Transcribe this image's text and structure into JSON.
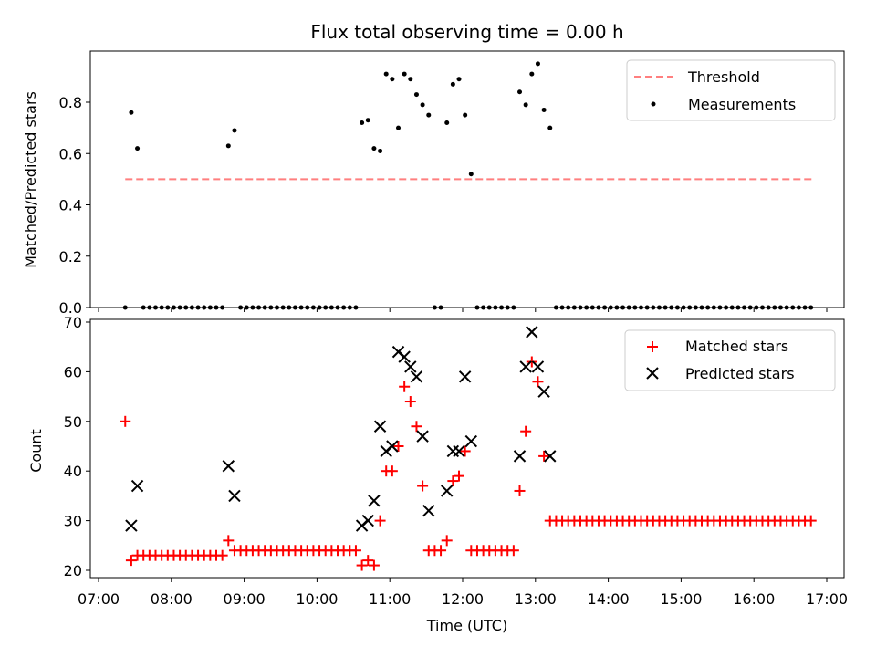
{
  "chart_data": [
    {
      "type": "scatter",
      "title": "Flux total observing time = 0.00 h",
      "xlabel": "",
      "ylabel": "Matched/Predicted stars",
      "ylim": [
        0,
        1.0
      ],
      "yticks": [
        "0.0",
        "0.2",
        "0.4",
        "0.6",
        "0.8"
      ],
      "grid": false,
      "legend": "top-right",
      "threshold": {
        "name": "Threshold",
        "value": 0.5,
        "x_start": "07:22",
        "x_end": "16:48",
        "color": "#ff7f7f"
      },
      "series": [
        {
          "name": "Measurements",
          "color": "#000000",
          "points": [
            [
              "07:22",
              0
            ],
            [
              "07:27",
              0.76
            ],
            [
              "07:32",
              0.62
            ],
            [
              "07:37",
              0
            ],
            [
              "07:42",
              0
            ],
            [
              "07:47",
              0
            ],
            [
              "07:52",
              0
            ],
            [
              "07:57",
              0
            ],
            [
              "08:02",
              0
            ],
            [
              "08:07",
              0
            ],
            [
              "08:12",
              0
            ],
            [
              "08:17",
              0
            ],
            [
              "08:22",
              0
            ],
            [
              "08:27",
              0
            ],
            [
              "08:32",
              0
            ],
            [
              "08:37",
              0
            ],
            [
              "08:42",
              0
            ],
            [
              "08:47",
              0.63
            ],
            [
              "08:52",
              0.69
            ],
            [
              "08:57",
              0
            ],
            [
              "09:02",
              0
            ],
            [
              "09:07",
              0
            ],
            [
              "09:12",
              0
            ],
            [
              "09:17",
              0
            ],
            [
              "09:22",
              0
            ],
            [
              "09:27",
              0
            ],
            [
              "09:32",
              0
            ],
            [
              "09:37",
              0
            ],
            [
              "09:42",
              0
            ],
            [
              "09:47",
              0
            ],
            [
              "09:52",
              0
            ],
            [
              "09:57",
              0
            ],
            [
              "10:02",
              0
            ],
            [
              "10:07",
              0
            ],
            [
              "10:12",
              0
            ],
            [
              "10:17",
              0
            ],
            [
              "10:22",
              0
            ],
            [
              "10:27",
              0
            ],
            [
              "10:32",
              0
            ],
            [
              "10:37",
              0.72
            ],
            [
              "10:42",
              0.73
            ],
            [
              "10:47",
              0.62
            ],
            [
              "10:52",
              0.61
            ],
            [
              "10:57",
              0.91
            ],
            [
              "11:02",
              0.89
            ],
            [
              "11:07",
              0.7
            ],
            [
              "11:12",
              0.91
            ],
            [
              "11:17",
              0.89
            ],
            [
              "11:22",
              0.83
            ],
            [
              "11:27",
              0.79
            ],
            [
              "11:32",
              0.75
            ],
            [
              "11:37",
              0
            ],
            [
              "11:42",
              0
            ],
            [
              "11:47",
              0.72
            ],
            [
              "11:52",
              0.87
            ],
            [
              "11:57",
              0.89
            ],
            [
              "12:02",
              0.75
            ],
            [
              "12:07",
              0.52
            ],
            [
              "12:12",
              0
            ],
            [
              "12:17",
              0
            ],
            [
              "12:22",
              0
            ],
            [
              "12:27",
              0
            ],
            [
              "12:32",
              0
            ],
            [
              "12:37",
              0
            ],
            [
              "12:42",
              0
            ],
            [
              "12:47",
              0.84
            ],
            [
              "12:52",
              0.79
            ],
            [
              "12:57",
              0.91
            ],
            [
              "13:02",
              0.95
            ],
            [
              "13:07",
              0.77
            ],
            [
              "13:12",
              0.7
            ],
            [
              "13:17",
              0
            ],
            [
              "13:22",
              0
            ],
            [
              "13:27",
              0
            ],
            [
              "13:32",
              0
            ],
            [
              "13:37",
              0
            ],
            [
              "13:42",
              0
            ],
            [
              "13:47",
              0
            ],
            [
              "13:52",
              0
            ],
            [
              "13:57",
              0
            ],
            [
              "14:02",
              0
            ],
            [
              "14:07",
              0
            ],
            [
              "14:12",
              0
            ],
            [
              "14:17",
              0
            ],
            [
              "14:22",
              0
            ],
            [
              "14:27",
              0
            ],
            [
              "14:32",
              0
            ],
            [
              "14:37",
              0
            ],
            [
              "14:42",
              0
            ],
            [
              "14:47",
              0
            ],
            [
              "14:52",
              0
            ],
            [
              "14:57",
              0
            ],
            [
              "15:02",
              0
            ],
            [
              "15:07",
              0
            ],
            [
              "15:12",
              0
            ],
            [
              "15:17",
              0
            ],
            [
              "15:22",
              0
            ],
            [
              "15:27",
              0
            ],
            [
              "15:32",
              0
            ],
            [
              "15:37",
              0
            ],
            [
              "15:42",
              0
            ],
            [
              "15:47",
              0
            ],
            [
              "15:52",
              0
            ],
            [
              "15:57",
              0
            ],
            [
              "16:02",
              0
            ],
            [
              "16:07",
              0
            ],
            [
              "16:12",
              0
            ],
            [
              "16:17",
              0
            ],
            [
              "16:22",
              0
            ],
            [
              "16:27",
              0
            ],
            [
              "16:32",
              0
            ],
            [
              "16:37",
              0
            ],
            [
              "16:42",
              0
            ],
            [
              "16:47",
              0
            ]
          ]
        }
      ]
    },
    {
      "type": "scatter",
      "title": "",
      "xlabel": "Time (UTC)",
      "ylabel": "Count",
      "ylim": [
        19,
        70
      ],
      "xlim": [
        "07:00",
        "17:15"
      ],
      "xticks": [
        "07:00",
        "08:00",
        "09:00",
        "10:00",
        "11:00",
        "12:00",
        "13:00",
        "14:00",
        "15:00",
        "16:00",
        "17:00"
      ],
      "yticks": [
        "20",
        "30",
        "40",
        "50",
        "60",
        "70"
      ],
      "grid": false,
      "legend": "top-right",
      "series": [
        {
          "name": "Matched stars",
          "marker": "plus",
          "color": "#ff0000",
          "points": [
            [
              "07:22",
              50
            ],
            [
              "07:27",
              22
            ],
            [
              "07:32",
              23
            ],
            [
              "07:37",
              23
            ],
            [
              "07:42",
              23
            ],
            [
              "07:47",
              23
            ],
            [
              "07:52",
              23
            ],
            [
              "07:57",
              23
            ],
            [
              "08:02",
              23
            ],
            [
              "08:07",
              23
            ],
            [
              "08:12",
              23
            ],
            [
              "08:17",
              23
            ],
            [
              "08:22",
              23
            ],
            [
              "08:27",
              23
            ],
            [
              "08:32",
              23
            ],
            [
              "08:37",
              23
            ],
            [
              "08:42",
              23
            ],
            [
              "08:47",
              26
            ],
            [
              "08:52",
              24
            ],
            [
              "08:57",
              24
            ],
            [
              "09:02",
              24
            ],
            [
              "09:07",
              24
            ],
            [
              "09:12",
              24
            ],
            [
              "09:17",
              24
            ],
            [
              "09:22",
              24
            ],
            [
              "09:27",
              24
            ],
            [
              "09:32",
              24
            ],
            [
              "09:37",
              24
            ],
            [
              "09:42",
              24
            ],
            [
              "09:47",
              24
            ],
            [
              "09:52",
              24
            ],
            [
              "09:57",
              24
            ],
            [
              "10:02",
              24
            ],
            [
              "10:07",
              24
            ],
            [
              "10:12",
              24
            ],
            [
              "10:17",
              24
            ],
            [
              "10:22",
              24
            ],
            [
              "10:27",
              24
            ],
            [
              "10:32",
              24
            ],
            [
              "10:37",
              21
            ],
            [
              "10:42",
              22
            ],
            [
              "10:47",
              21
            ],
            [
              "10:52",
              30
            ],
            [
              "10:57",
              40
            ],
            [
              "11:02",
              40
            ],
            [
              "11:07",
              45
            ],
            [
              "11:12",
              57
            ],
            [
              "11:17",
              54
            ],
            [
              "11:22",
              49
            ],
            [
              "11:27",
              37
            ],
            [
              "11:32",
              24
            ],
            [
              "11:37",
              24
            ],
            [
              "11:42",
              24
            ],
            [
              "11:47",
              26
            ],
            [
              "11:52",
              38
            ],
            [
              "11:57",
              39
            ],
            [
              "12:02",
              44
            ],
            [
              "12:07",
              24
            ],
            [
              "12:12",
              24
            ],
            [
              "12:17",
              24
            ],
            [
              "12:22",
              24
            ],
            [
              "12:27",
              24
            ],
            [
              "12:32",
              24
            ],
            [
              "12:37",
              24
            ],
            [
              "12:42",
              24
            ],
            [
              "12:47",
              36
            ],
            [
              "12:52",
              48
            ],
            [
              "12:57",
              62
            ],
            [
              "13:02",
              58
            ],
            [
              "13:07",
              43
            ],
            [
              "13:12",
              30
            ],
            [
              "13:17",
              30
            ],
            [
              "13:22",
              30
            ],
            [
              "13:27",
              30
            ],
            [
              "13:32",
              30
            ],
            [
              "13:37",
              30
            ],
            [
              "13:42",
              30
            ],
            [
              "13:47",
              30
            ],
            [
              "13:52",
              30
            ],
            [
              "13:57",
              30
            ],
            [
              "14:02",
              30
            ],
            [
              "14:07",
              30
            ],
            [
              "14:12",
              30
            ],
            [
              "14:17",
              30
            ],
            [
              "14:22",
              30
            ],
            [
              "14:27",
              30
            ],
            [
              "14:32",
              30
            ],
            [
              "14:37",
              30
            ],
            [
              "14:42",
              30
            ],
            [
              "14:47",
              30
            ],
            [
              "14:52",
              30
            ],
            [
              "14:57",
              30
            ],
            [
              "15:02",
              30
            ],
            [
              "15:07",
              30
            ],
            [
              "15:12",
              30
            ],
            [
              "15:17",
              30
            ],
            [
              "15:22",
              30
            ],
            [
              "15:27",
              30
            ],
            [
              "15:32",
              30
            ],
            [
              "15:37",
              30
            ],
            [
              "15:42",
              30
            ],
            [
              "15:47",
              30
            ],
            [
              "15:52",
              30
            ],
            [
              "15:57",
              30
            ],
            [
              "16:02",
              30
            ],
            [
              "16:07",
              30
            ],
            [
              "16:12",
              30
            ],
            [
              "16:17",
              30
            ],
            [
              "16:22",
              30
            ],
            [
              "16:27",
              30
            ],
            [
              "16:32",
              30
            ],
            [
              "16:37",
              30
            ],
            [
              "16:42",
              30
            ],
            [
              "16:47",
              30
            ]
          ]
        },
        {
          "name": "Predicted stars",
          "marker": "x",
          "color": "#000000",
          "points": [
            [
              "07:27",
              29
            ],
            [
              "07:32",
              37
            ],
            [
              "08:47",
              41
            ],
            [
              "08:52",
              35
            ],
            [
              "10:37",
              29
            ],
            [
              "10:42",
              30
            ],
            [
              "10:47",
              34
            ],
            [
              "10:52",
              49
            ],
            [
              "10:57",
              44
            ],
            [
              "11:02",
              45
            ],
            [
              "11:07",
              64
            ],
            [
              "11:12",
              63
            ],
            [
              "11:17",
              61
            ],
            [
              "11:22",
              59
            ],
            [
              "11:27",
              47
            ],
            [
              "11:32",
              32
            ],
            [
              "11:47",
              36
            ],
            [
              "11:52",
              44
            ],
            [
              "11:57",
              44
            ],
            [
              "12:02",
              59
            ],
            [
              "12:07",
              46
            ],
            [
              "12:47",
              43
            ],
            [
              "12:52",
              61
            ],
            [
              "12:57",
              68
            ],
            [
              "13:02",
              61
            ],
            [
              "13:07",
              56
            ],
            [
              "13:12",
              43
            ]
          ]
        }
      ]
    }
  ]
}
